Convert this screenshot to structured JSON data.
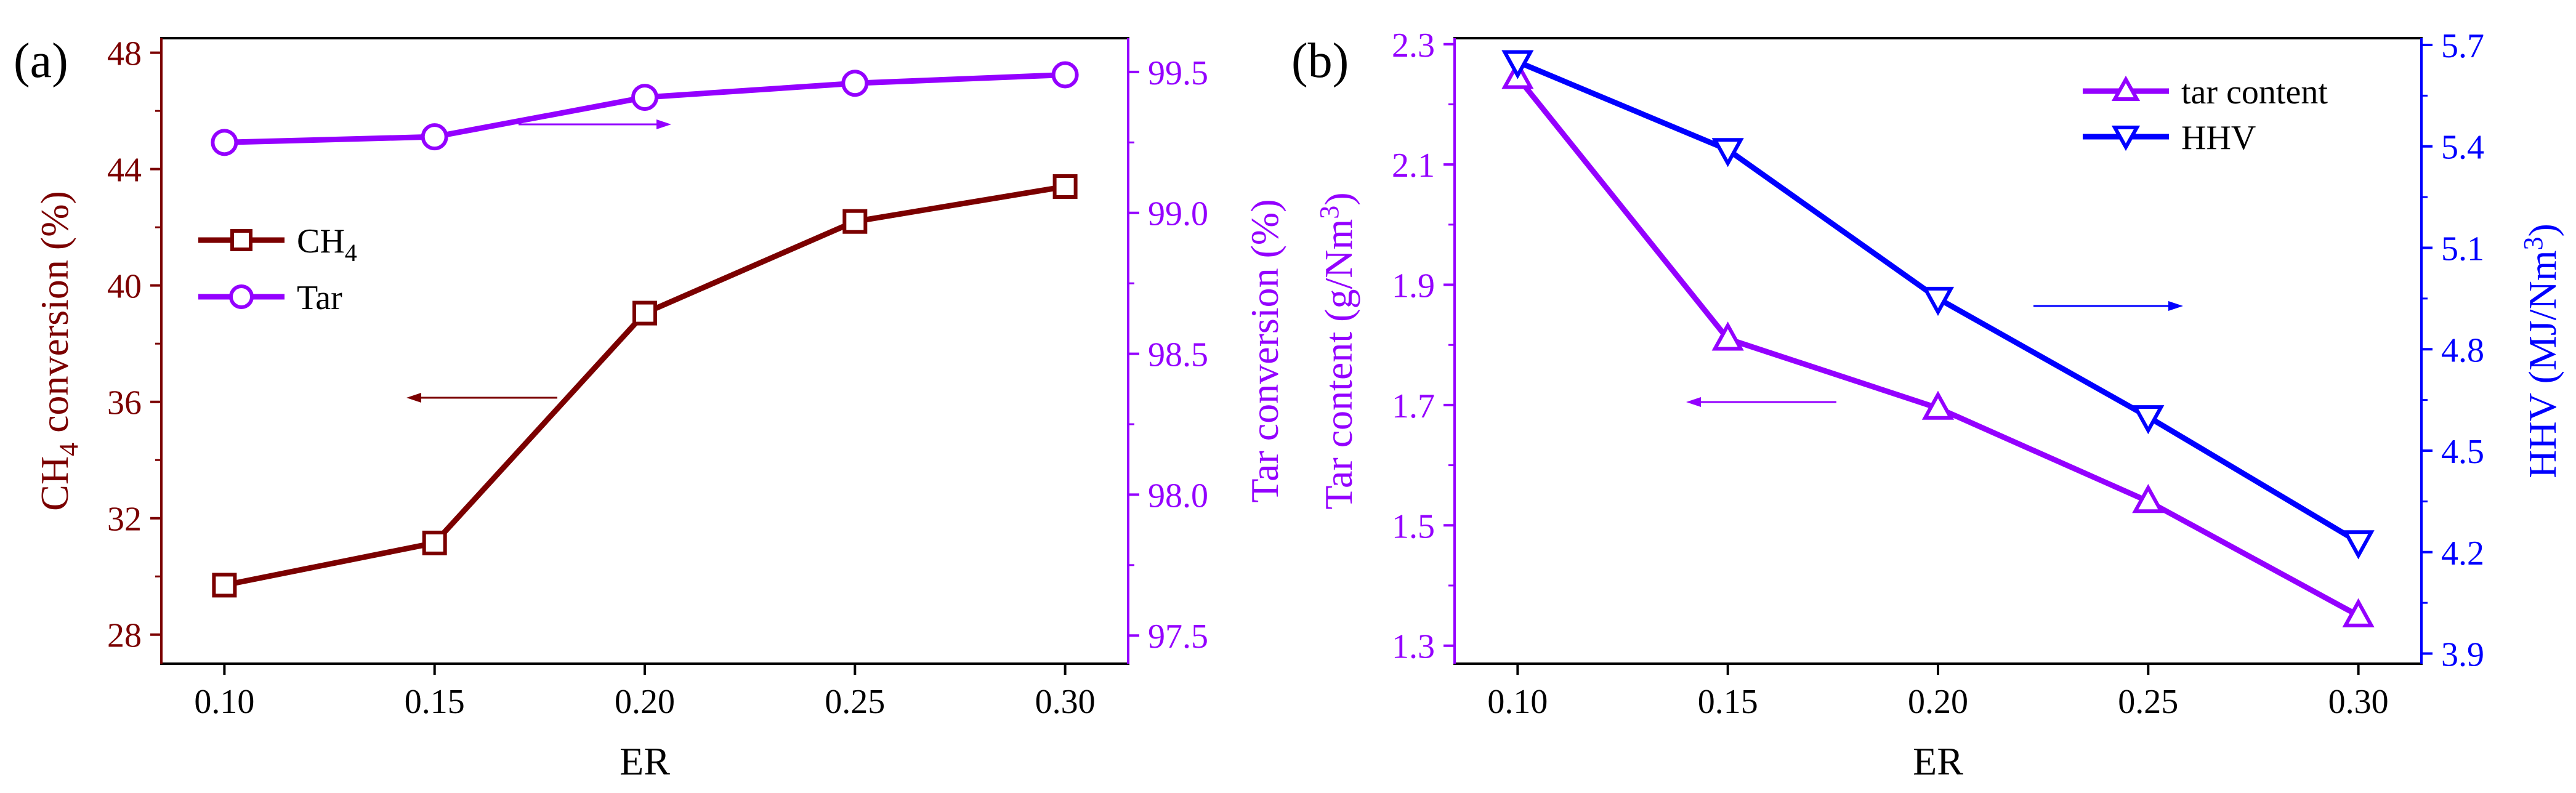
{
  "colors": {
    "ch4": "#7b0000",
    "tar": "#9400ff",
    "hhv": "#0000ff",
    "frame": "#000000"
  },
  "chart_data": [
    {
      "panel_label": "(a)",
      "type": "line",
      "x": [
        0.1,
        0.15,
        0.2,
        0.25,
        0.3
      ],
      "xlabel": "ER",
      "xlim": [
        0.085,
        0.315
      ],
      "xticks": [
        "0.10",
        "0.15",
        "0.20",
        "0.25",
        "0.30"
      ],
      "ylabel_left": {
        "main": "CH",
        "sub": "4",
        "rest": " conversion (%)"
      },
      "ylim_left": [
        27,
        48.5
      ],
      "yticks_left": [
        "28",
        "32",
        "36",
        "40",
        "44",
        "48"
      ],
      "ylabel_right": "Tar conversion (%)",
      "ylim_right": [
        97.4,
        99.62
      ],
      "yticks_right": [
        "97.5",
        "98.0",
        "98.5",
        "99.0",
        "99.5"
      ],
      "series": [
        {
          "name": "CH",
          "name_sub": "4",
          "axis": "left",
          "marker": "square",
          "color": "#7b0000",
          "values": [
            29.7,
            31.15,
            39.05,
            42.2,
            43.4
          ]
        },
        {
          "name": "Tar",
          "axis": "right",
          "marker": "circle",
          "color": "#9400ff",
          "values": [
            99.25,
            99.27,
            99.41,
            99.46,
            99.49
          ]
        }
      ],
      "legend_position": "center-left",
      "annotations": [
        {
          "type": "arrow",
          "direction": "right",
          "series": "Tar",
          "meaning": "right axis"
        },
        {
          "type": "arrow",
          "direction": "left",
          "series": "CH4",
          "meaning": "left axis"
        }
      ]
    },
    {
      "panel_label": "(b)",
      "type": "line",
      "x": [
        0.1,
        0.15,
        0.2,
        0.25,
        0.3
      ],
      "xlabel": "ER",
      "xlim": [
        0.085,
        0.315
      ],
      "xticks": [
        "0.10",
        "0.15",
        "0.20",
        "0.25",
        "0.30"
      ],
      "ylabel_left": {
        "main": "Tar content (g/Nm",
        "sup": "3",
        "rest": ")"
      },
      "ylim_left": [
        1.27,
        2.31
      ],
      "yticks_left": [
        "1.3",
        "1.5",
        "1.7",
        "1.9",
        "2.1",
        "2.3"
      ],
      "ylabel_right": {
        "main": "HHV (MJ/Nm",
        "sup": "3",
        "rest": ")"
      },
      "ylim_right": [
        3.87,
        5.72
      ],
      "yticks_right": [
        "3.9",
        "4.2",
        "4.5",
        "4.8",
        "5.1",
        "5.4",
        "5.7"
      ],
      "series": [
        {
          "name": "tar content",
          "axis": "left",
          "marker": "triangle-up",
          "color": "#9400ff",
          "values": [
            2.245,
            1.81,
            1.695,
            1.54,
            1.35
          ]
        },
        {
          "name": "HHV",
          "axis": "right",
          "marker": "triangle-down",
          "color": "#0000ff",
          "values": [
            5.65,
            5.39,
            4.95,
            4.6,
            4.23
          ]
        }
      ],
      "legend_position": "top-right",
      "annotations": [
        {
          "type": "arrow",
          "direction": "right",
          "series": "HHV",
          "meaning": "right axis"
        },
        {
          "type": "arrow",
          "direction": "left",
          "series": "tar content",
          "meaning": "left axis"
        }
      ]
    }
  ]
}
